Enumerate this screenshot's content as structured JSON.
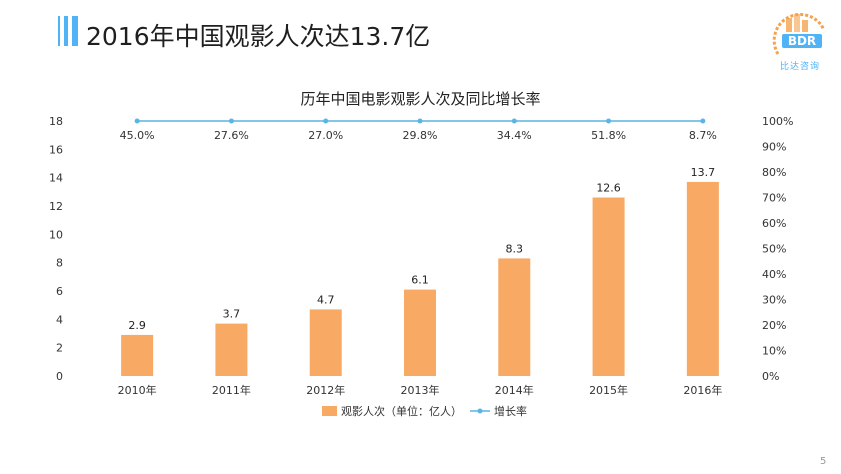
{
  "slide": {
    "title": "2016年中国观影人次达13.7亿",
    "page_number": "5"
  },
  "logo": {
    "name": "BDR-logo-icon",
    "text": "BDR",
    "subtext": "比达咨询"
  },
  "colors": {
    "accent": "#4fb3f6",
    "bar": "#f8a964",
    "line": "#5ab4e6",
    "logo_orange": "#f5a24b"
  },
  "chart_data": {
    "type": "bar",
    "title": "历年中国电影观影人次及同比增长率",
    "categories": [
      "2010年",
      "2011年",
      "2012年",
      "2013年",
      "2014年",
      "2015年",
      "2016年"
    ],
    "series": [
      {
        "name": "观影人次（单位：亿人）",
        "type": "bar",
        "axis": "left",
        "values": [
          2.9,
          3.7,
          4.7,
          6.1,
          8.3,
          12.6,
          13.7
        ],
        "labels": [
          "2.9",
          "3.7",
          "4.7",
          "6.1",
          "8.3",
          "12.6",
          "13.7"
        ]
      },
      {
        "name": "增长率",
        "type": "line",
        "axis": "right",
        "values": [
          45.0,
          27.6,
          27.0,
          29.8,
          34.4,
          51.8,
          8.7
        ],
        "labels": [
          "45.0%",
          "27.6%",
          "27.0%",
          "29.8%",
          "34.4%",
          "51.8%",
          "8.7%"
        ],
        "plotted_level": 100
      }
    ],
    "y_left": {
      "ylim": [
        0,
        18
      ],
      "ticks": [
        "0",
        "2",
        "4",
        "6",
        "8",
        "10",
        "12",
        "14",
        "16",
        "18"
      ]
    },
    "y_right": {
      "ylim": [
        0,
        100
      ],
      "ticks": [
        "0%",
        "10%",
        "20%",
        "30%",
        "40%",
        "50%",
        "60%",
        "70%",
        "80%",
        "90%",
        "100%"
      ]
    },
    "legend_position": "bottom",
    "grid": false
  }
}
